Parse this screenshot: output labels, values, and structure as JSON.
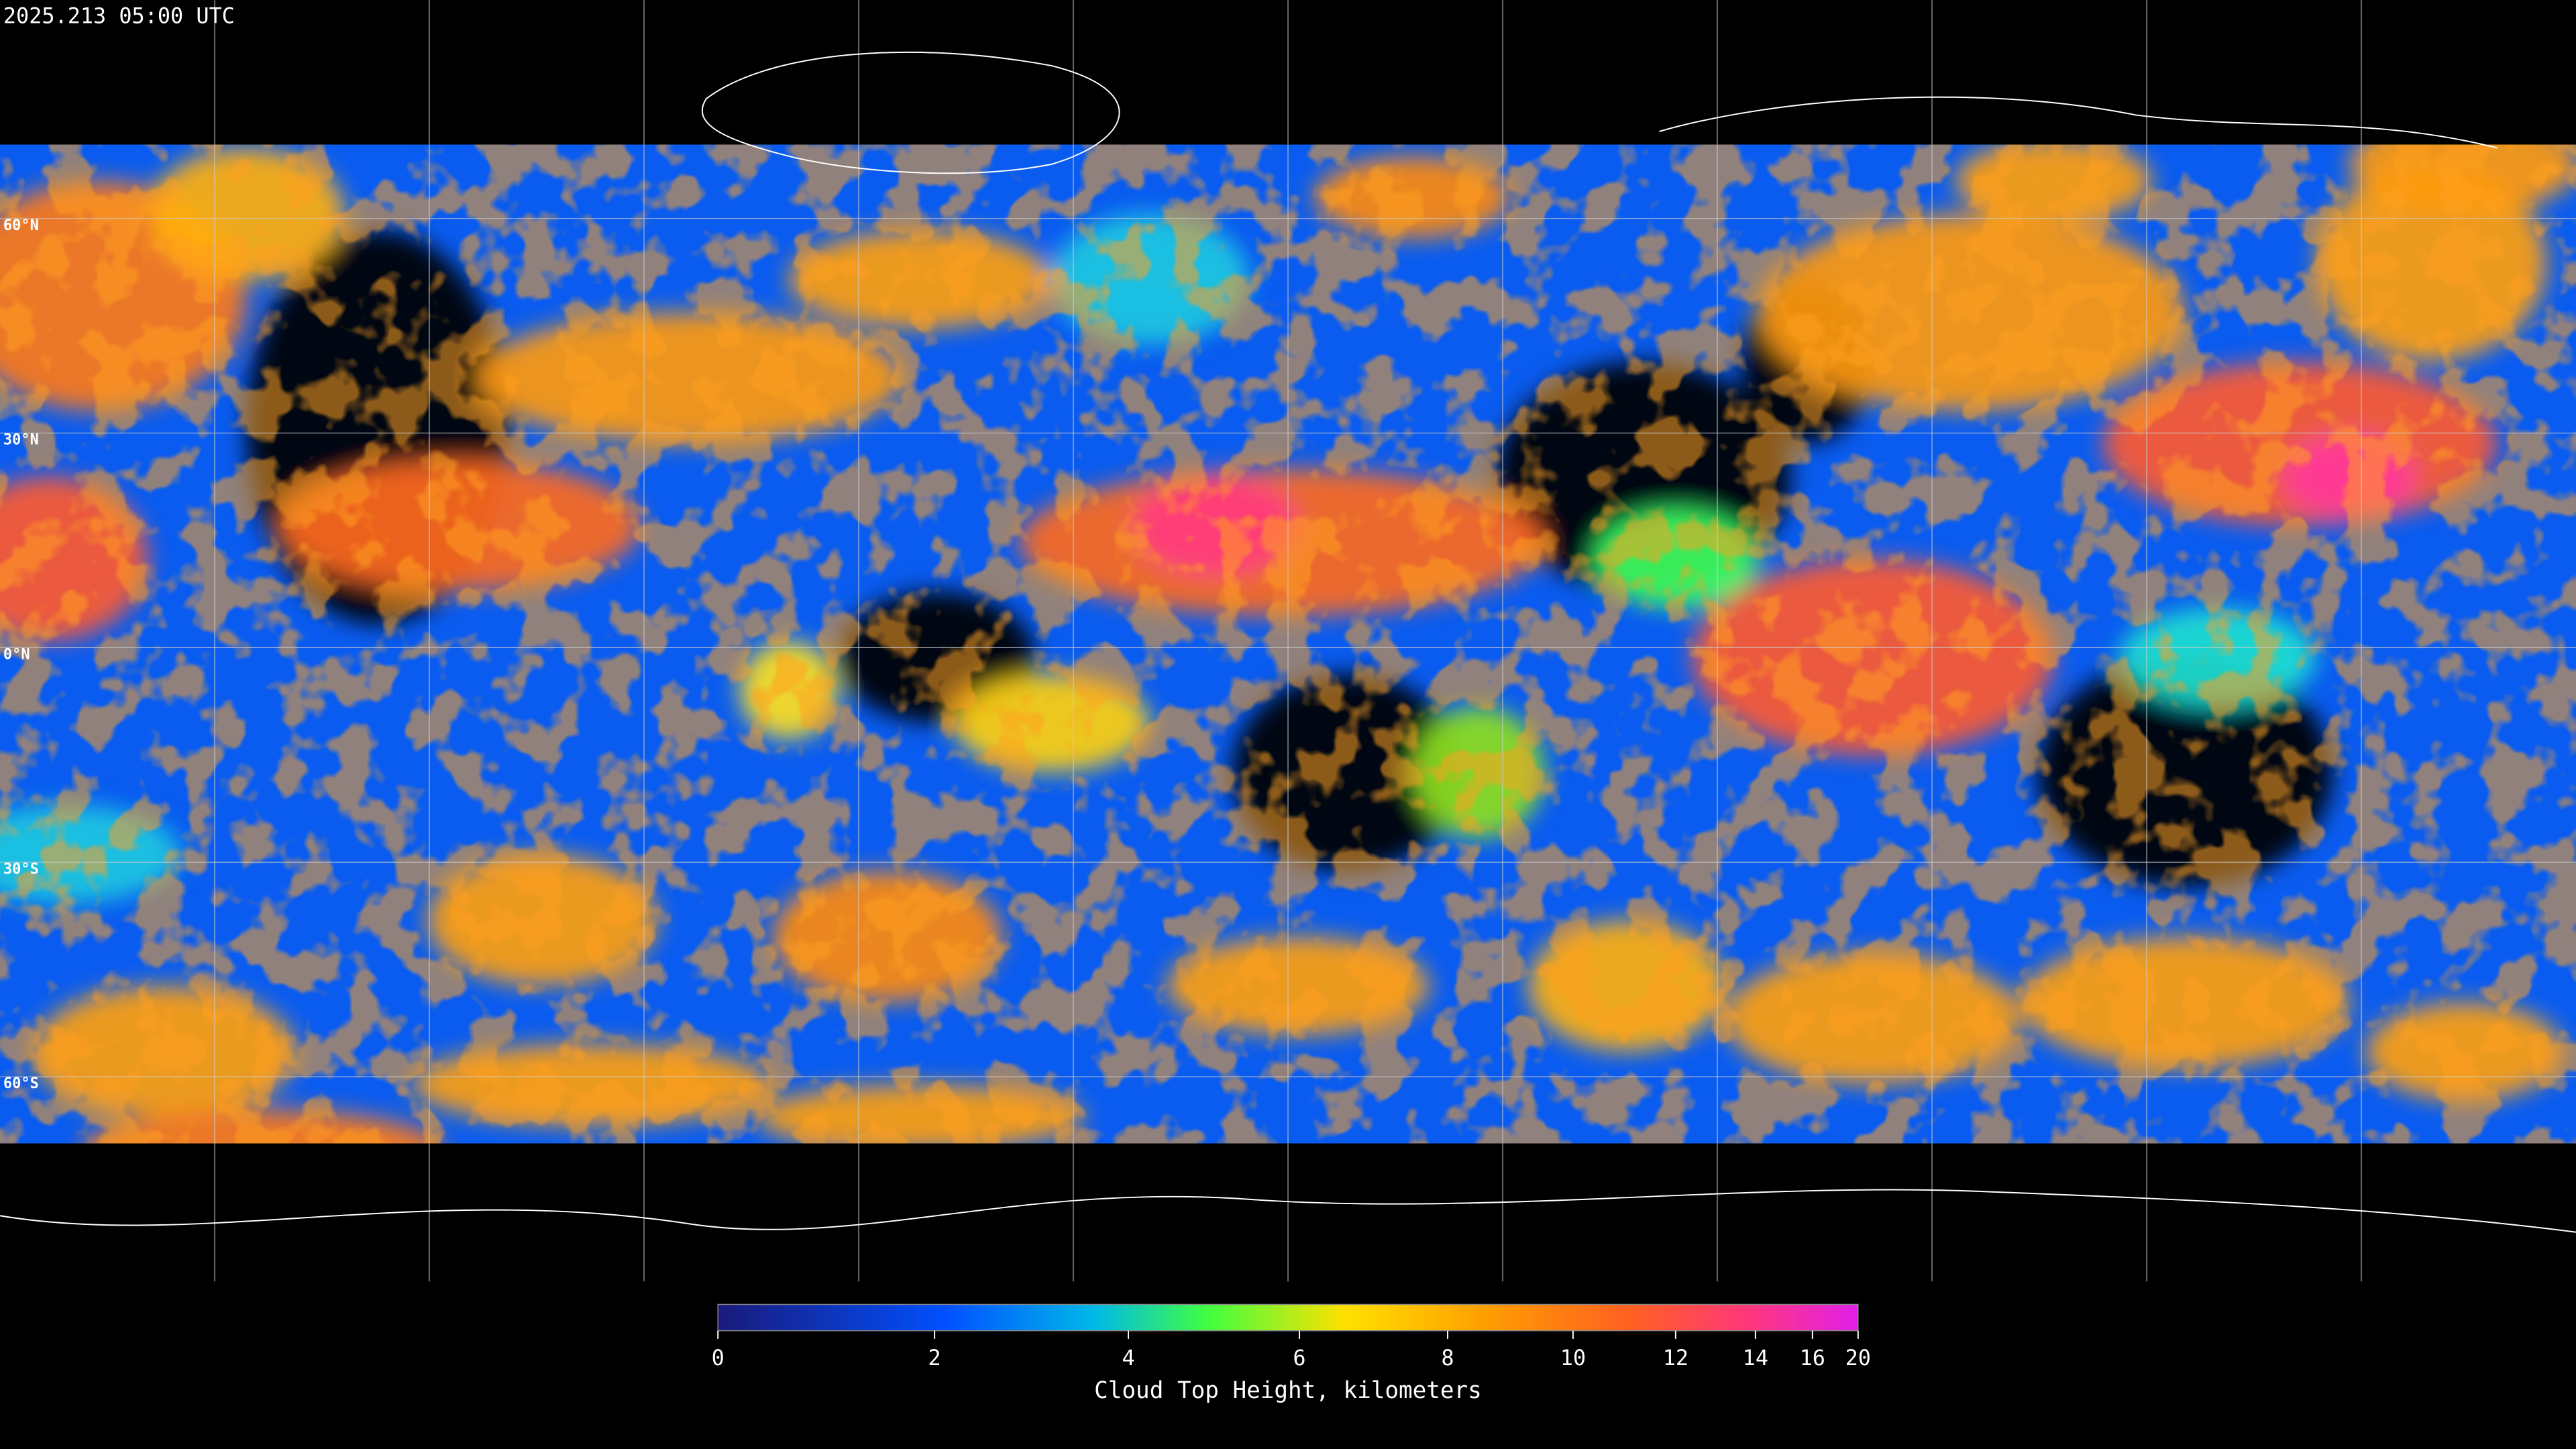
{
  "header": {
    "timestamp": "2025.213 05:00 UTC"
  },
  "map": {
    "lat_labels": [
      "60°N",
      "30°N",
      "0°N",
      "30°S",
      "60°S"
    ]
  },
  "colorbar": {
    "lim": [
      0,
      20
    ],
    "ticks": [
      0,
      2,
      4,
      6,
      8,
      10,
      12,
      14,
      16,
      20
    ],
    "label": "Cloud Top Height, kilometers"
  }
}
